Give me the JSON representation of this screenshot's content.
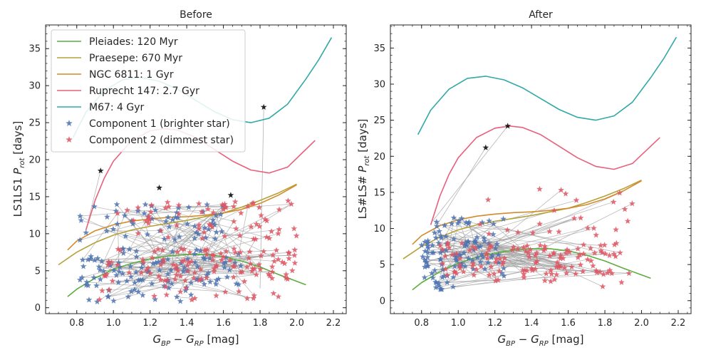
{
  "chart_data": [
    {
      "type": "scatter",
      "title": "Before",
      "xlabel": "G_BP − G_RP [mag]",
      "xlabel_parts": {
        "g1": "G",
        "s1": "BP",
        "minus": " − ",
        "g2": "G",
        "s2": "RP",
        "unit": " [mag]"
      },
      "ylabel": "LS1LS1 P_rot [days]",
      "ylabel_parts": {
        "prefix": "LS1LS1 ",
        "p": "P",
        "sub": "rot",
        "unit": " [days]"
      },
      "xlim": [
        0.63,
        2.27
      ],
      "ylim": [
        -0.8,
        38.2
      ],
      "xticks": [
        "0.8",
        "1.0",
        "1.2",
        "1.4",
        "1.6",
        "1.8",
        "2.0",
        "2.2"
      ],
      "yticks": [
        "0",
        "5",
        "10",
        "15",
        "20",
        "25",
        "30",
        "35"
      ],
      "legend_position": "top-left",
      "scatter_seed": 11,
      "scatter_clusters": [
        {
          "series": "Component 1 (brighter star)",
          "n": 95,
          "x": [
            0.8,
            1.7
          ],
          "y": [
            3.0,
            8.0
          ]
        },
        {
          "series": "Component 1 (brighter star)",
          "n": 55,
          "x": [
            0.8,
            1.6
          ],
          "y": [
            9.0,
            14.0
          ]
        },
        {
          "series": "Component 1 (brighter star)",
          "n": 20,
          "x": [
            0.85,
            1.5
          ],
          "y": [
            0.8,
            3.0
          ]
        },
        {
          "series": "Component 2 (dimmest star)",
          "n": 110,
          "x": [
            0.95,
            2.0
          ],
          "y": [
            3.5,
            8.0
          ]
        },
        {
          "series": "Component 2 (dimmest star)",
          "n": 65,
          "x": [
            1.0,
            2.0
          ],
          "y": [
            9.0,
            14.5
          ]
        },
        {
          "series": "Component 2 (dimmest star)",
          "n": 18,
          "x": [
            0.9,
            1.9
          ],
          "y": [
            0.8,
            3.0
          ]
        }
      ],
      "highlighted_points": [
        {
          "series": "Component 2 (dimmest star)",
          "x": 1.82,
          "y": 27.1
        },
        {
          "series": "Component 2 (dimmest star)",
          "x": 0.93,
          "y": 18.5
        },
        {
          "series": "Component 2 (dimmest star)",
          "x": 1.25,
          "y": 16.2
        },
        {
          "series": "Component 2 (dimmest star)",
          "x": 1.64,
          "y": 15.2
        }
      ],
      "highlight_links": [
        [
          0,
          1.8,
          2.6
        ],
        [
          1,
          0.86,
          11.5
        ]
      ],
      "pair_links": 130
    },
    {
      "type": "scatter",
      "title": "After",
      "xlabel": "G_BP − G_RP [mag]",
      "xlabel_parts": {
        "g1": "G",
        "s1": "BP",
        "minus": " − ",
        "g2": "G",
        "s2": "RP",
        "unit": " [mag]"
      },
      "ylabel": "LS#LS# P_rot [days]",
      "ylabel_parts": {
        "prefix": "LS#LS# ",
        "p": "P",
        "sub": "rot",
        "unit": " [days]"
      },
      "xlim": [
        0.63,
        2.27
      ],
      "ylim": [
        -1.8,
        38.2
      ],
      "xticks": [
        "0.8",
        "1.0",
        "1.2",
        "1.4",
        "1.6",
        "1.8",
        "2.0",
        "2.2"
      ],
      "yticks": [
        "0",
        "5",
        "10",
        "15",
        "20",
        "25",
        "30",
        "35"
      ],
      "scatter_seed": 23,
      "scatter_clusters": [
        {
          "series": "Component 1 (brighter star)",
          "n": 80,
          "x": [
            0.8,
            1.25
          ],
          "y": [
            3.0,
            8.5
          ]
        },
        {
          "series": "Component 1 (brighter star)",
          "n": 25,
          "x": [
            0.85,
            1.25
          ],
          "y": [
            8.5,
            11.5
          ]
        },
        {
          "series": "Component 1 (brighter star)",
          "n": 10,
          "x": [
            0.85,
            1.0
          ],
          "y": [
            1.5,
            3.0
          ]
        },
        {
          "series": "Component 2 (dimmest star)",
          "n": 120,
          "x": [
            0.9,
            1.95
          ],
          "y": [
            3.5,
            8.0
          ]
        },
        {
          "series": "Component 2 (dimmest star)",
          "n": 25,
          "x": [
            1.1,
            1.95
          ],
          "y": [
            9.0,
            16.0
          ]
        },
        {
          "series": "Component 2 (dimmest star)",
          "n": 8,
          "x": [
            1.2,
            1.95
          ],
          "y": [
            1.8,
            3.2
          ]
        }
      ],
      "highlighted_points": [
        {
          "series": "Component 2 (dimmest star)",
          "x": 1.27,
          "y": 24.2
        },
        {
          "series": "Component 2 (dimmest star)",
          "x": 1.15,
          "y": 21.2
        }
      ],
      "highlight_links": [
        [
          0,
          0.86,
          11.0
        ],
        [
          1,
          0.86,
          9.5
        ]
      ],
      "pair_links": 110
    }
  ],
  "isochrones": [
    {
      "name": "Pleiades: 120 Myr",
      "color": "#5aae3d",
      "x": [
        0.75,
        0.8,
        0.9,
        1.0,
        1.1,
        1.2,
        1.3,
        1.4,
        1.5,
        1.6,
        1.7,
        1.8,
        1.9,
        2.05
      ],
      "y": [
        1.5,
        2.5,
        4.0,
        5.2,
        6.0,
        6.6,
        7.0,
        7.2,
        7.2,
        6.9,
        6.3,
        5.5,
        4.5,
        3.1
      ]
    },
    {
      "name": "Praesepe: 670 Myr",
      "color": "#b5a13a",
      "x": [
        0.7,
        0.8,
        0.9,
        1.0,
        1.1,
        1.2,
        1.3,
        1.4,
        1.5,
        1.6,
        1.7,
        1.8,
        1.9,
        2.0
      ],
      "y": [
        5.8,
        7.5,
        8.8,
        9.8,
        10.5,
        11.0,
        11.4,
        11.8,
        12.3,
        12.8,
        13.6,
        14.5,
        15.5,
        16.7
      ]
    },
    {
      "name": "NGC 6811: 1 Gyr",
      "color": "#d48a2a",
      "x": [
        0.75,
        0.8,
        0.9,
        1.0,
        1.1,
        1.2,
        1.3,
        1.4,
        1.5,
        1.6,
        1.7,
        1.8,
        1.9,
        2.0
      ],
      "y": [
        7.8,
        9.0,
        10.4,
        11.2,
        11.7,
        12.0,
        12.2,
        12.3,
        12.5,
        12.8,
        13.3,
        14.1,
        15.2,
        16.6
      ]
    },
    {
      "name": "Ruprecht 147: 2.7 Gyr",
      "color": "#e8607a",
      "x": [
        0.85,
        0.9,
        0.95,
        1.0,
        1.1,
        1.2,
        1.28,
        1.35,
        1.45,
        1.55,
        1.65,
        1.75,
        1.85,
        1.95,
        2.1
      ],
      "y": [
        10.5,
        14.5,
        17.5,
        19.8,
        22.6,
        23.9,
        24.2,
        24.0,
        23.0,
        21.4,
        19.8,
        18.6,
        18.2,
        19.0,
        22.6
      ]
    },
    {
      "name": "M67: 4 Gyr",
      "color": "#32a8a8",
      "x": [
        0.78,
        0.85,
        0.95,
        1.05,
        1.15,
        1.25,
        1.35,
        1.45,
        1.55,
        1.65,
        1.75,
        1.85,
        1.95,
        2.05,
        2.12,
        2.19
      ],
      "y": [
        23.0,
        26.4,
        29.3,
        30.8,
        31.1,
        30.6,
        29.5,
        28.0,
        26.5,
        25.4,
        25.0,
        25.6,
        27.5,
        30.9,
        33.5,
        36.5
      ]
    }
  ],
  "scatter_series": [
    {
      "name": "Component 1 (brighter star)",
      "color": "#4c72b0"
    },
    {
      "name": "Component 2 (dimmest star)",
      "color": "#dd5561"
    }
  ],
  "pair_link_color": "#a0a0a0"
}
